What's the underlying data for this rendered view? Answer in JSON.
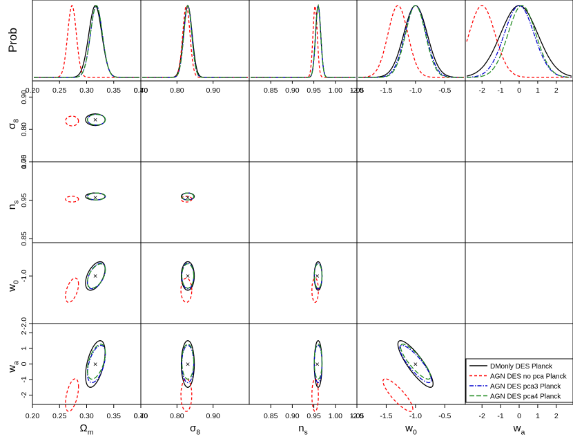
{
  "chart_data": {
    "type": "triangle-corner-plot",
    "prob_label": "Prob",
    "parameters": [
      {
        "key": "Om",
        "label": "Ω",
        "sub": "m",
        "range": [
          0.2,
          0.4
        ],
        "ticks": [
          "0.20",
          "0.25",
          "0.30",
          "0.35",
          "0.40"
        ],
        "tickvals": [
          0.2,
          0.25,
          0.3,
          0.35,
          0.4
        ]
      },
      {
        "key": "s8",
        "label": "σ",
        "sub": "8",
        "range": [
          0.7,
          1.0
        ],
        "ticks": [
          "0.70",
          "0.80",
          "0.90"
        ],
        "tickvals": [
          0.7,
          0.8,
          0.9
        ]
      },
      {
        "key": "ns",
        "label": "n",
        "sub": "s",
        "range": [
          0.8,
          1.05
        ],
        "ticks": [
          "0.85",
          "0.90",
          "0.95",
          "1.00",
          "1.05"
        ],
        "tickvals": [
          0.85,
          0.9,
          0.95,
          1.0,
          1.05
        ]
      },
      {
        "key": "w0",
        "label": "w",
        "sub": "0",
        "range": [
          -2.0,
          -0.15
        ],
        "ticks": [
          "-2.0",
          "-1.5",
          "-1.0",
          "-0.5"
        ],
        "tickvals": [
          -2.0,
          -1.5,
          -1.0,
          -0.5
        ]
      },
      {
        "key": "wa",
        "label": "w",
        "sub": "a",
        "range": [
          -2.9,
          2.9
        ],
        "ticks": [
          "-2",
          "-1",
          "0",
          "1",
          "2"
        ],
        "tickvals": [
          -2,
          -1,
          0,
          1,
          2
        ]
      }
    ],
    "left_axis_ticks": {
      "s8": {
        "labels": [
          "0.70",
          "0.80",
          "0.90"
        ],
        "vals": [
          0.7,
          0.8,
          0.9
        ],
        "range": [
          0.7,
          0.95
        ]
      },
      "ns": {
        "labels": [
          "0.85",
          "0.95",
          "1.05"
        ],
        "vals": [
          0.85,
          0.95,
          1.05
        ],
        "range": [
          0.84,
          1.05
        ]
      },
      "w0": {
        "labels": [
          "-2.0",
          "-1.0"
        ],
        "vals": [
          -2.0,
          -1.0
        ],
        "range": [
          -2.0,
          -0.3
        ]
      },
      "wa": {
        "labels": [
          "-2",
          "-1",
          "0",
          "1",
          "2"
        ],
        "vals": [
          -2,
          -1,
          0,
          1,
          2
        ],
        "range": [
          -2.6,
          2.6
        ]
      }
    },
    "series": [
      {
        "name": "DMonly DES Planck",
        "color": "#000000",
        "dash": ""
      },
      {
        "name": "AGN DES no pca Planck",
        "color": "#ff0000",
        "dash": "4,3"
      },
      {
        "name": "AGN DES pca3 Planck",
        "color": "#0000cd",
        "dash": "6,2,1.5,2"
      },
      {
        "name": "AGN DES pca4 Planck",
        "color": "#228b22",
        "dash": "7,3"
      }
    ],
    "posteriors": {
      "fiducial": {
        "Om": 0.316,
        "s8": 0.83,
        "ns": 0.958,
        "w0": -1.0,
        "wa": 0.0
      },
      "DMonly DES Planck": {
        "Om": [
          0.316,
          0.012
        ],
        "s8": [
          0.83,
          0.012
        ],
        "ns": [
          0.96,
          0.006
        ],
        "w0": [
          -1.0,
          0.2
        ],
        "wa": [
          0.0,
          1.0
        ]
      },
      "AGN DES no pca Planck": {
        "Om": [
          0.273,
          0.008
        ],
        "s8": [
          0.826,
          0.01
        ],
        "ns": [
          0.953,
          0.005
        ],
        "w0": [
          -1.3,
          0.17
        ],
        "wa": [
          -2.0,
          0.7
        ]
      },
      "AGN DES pca3 Planck": {
        "Om": [
          0.318,
          0.011
        ],
        "s8": [
          0.83,
          0.011
        ],
        "ns": [
          0.96,
          0.006
        ],
        "w0": [
          -1.0,
          0.18
        ],
        "wa": [
          0.0,
          0.8
        ]
      },
      "AGN DES pca4 Planck": {
        "Om": [
          0.318,
          0.011
        ],
        "s8": [
          0.83,
          0.011
        ],
        "ns": [
          0.96,
          0.006
        ],
        "w0": [
          -1.0,
          0.17
        ],
        "wa": [
          0.15,
          0.75
        ]
      }
    },
    "legend": "bottom-right",
    "grid": false
  }
}
